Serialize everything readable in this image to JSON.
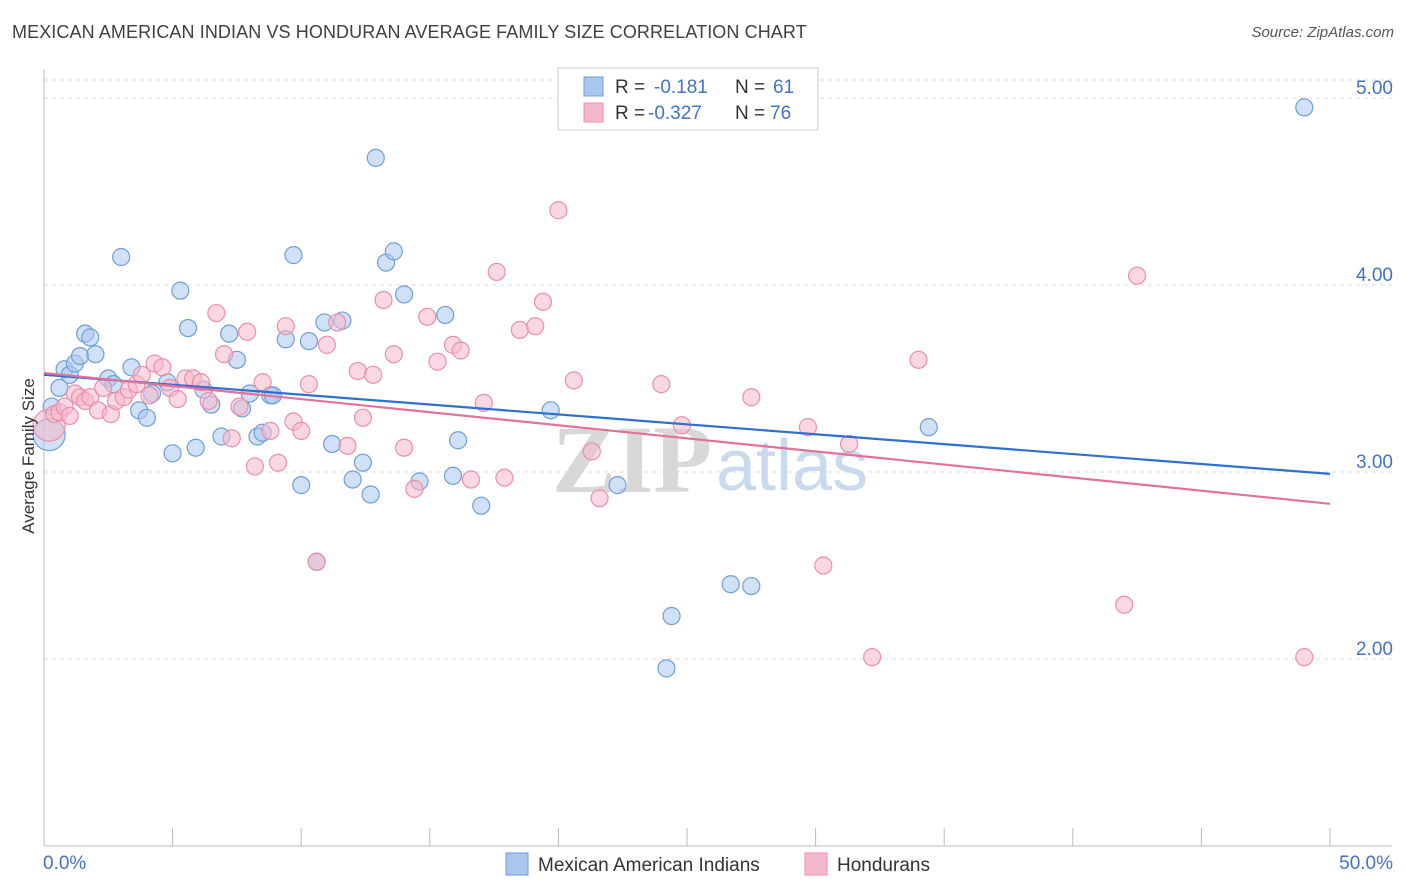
{
  "header": {
    "title": "MEXICAN AMERICAN INDIAN VS HONDURAN AVERAGE FAMILY SIZE CORRELATION CHART",
    "source": "Source: ZipAtlas.com"
  },
  "watermark": {
    "zip": "ZIP",
    "atlas": "atlas"
  },
  "colors": {
    "blue_fill": "#a9c6ee",
    "blue_stroke": "#6f9fd8",
    "blue_line": "#2f6fcf",
    "pink_fill": "#f5b8cb",
    "pink_stroke": "#ea8fac",
    "pink_line": "#e3719a",
    "tick_text": "#4472c4",
    "grid": "#dddddd"
  },
  "legend": {
    "rows": [
      {
        "r_label": "R =",
        "r_value": "-0.181",
        "n_label": "N =",
        "n_value": "61"
      },
      {
        "r_label": "R =",
        "r_value": "-0.327",
        "n_label": "N =",
        "n_value": "76"
      }
    ]
  },
  "chart_data": {
    "type": "scatter",
    "title": "MEXICAN AMERICAN INDIAN VS HONDURAN AVERAGE FAMILY SIZE CORRELATION CHART",
    "xlabel": "",
    "ylabel": "Average Family Size",
    "xlim": [
      0,
      50
    ],
    "ylim": [
      1.0,
      5.15
    ],
    "x_tick_labels": {
      "left": "0.0%",
      "right": "50.0%"
    },
    "y_ticks": [
      2.0,
      3.0,
      4.0,
      5.0
    ],
    "y_tick_labels": [
      "2.00",
      "3.00",
      "4.00",
      "5.00"
    ],
    "series": [
      {
        "name": "Mexican American Indians",
        "color": "blue",
        "r": -0.181,
        "n": 61,
        "trend": {
          "x0": 0,
          "y0": 3.52,
          "x1": 50,
          "y1": 2.99
        },
        "points": [
          [
            0.2,
            3.2
          ],
          [
            0.3,
            3.35
          ],
          [
            0.6,
            3.45
          ],
          [
            0.8,
            3.55
          ],
          [
            1.0,
            3.52
          ],
          [
            1.2,
            3.58
          ],
          [
            1.4,
            3.62
          ],
          [
            1.6,
            3.74
          ],
          [
            1.8,
            3.72
          ],
          [
            2.0,
            3.63
          ],
          [
            2.5,
            3.5
          ],
          [
            2.7,
            3.47
          ],
          [
            3.0,
            4.15
          ],
          [
            3.4,
            3.56
          ],
          [
            3.7,
            3.33
          ],
          [
            4.0,
            3.29
          ],
          [
            4.2,
            3.42
          ],
          [
            4.8,
            3.48
          ],
          [
            5.0,
            3.1
          ],
          [
            5.3,
            3.97
          ],
          [
            5.6,
            3.77
          ],
          [
            5.9,
            3.13
          ],
          [
            6.2,
            3.44
          ],
          [
            6.5,
            3.36
          ],
          [
            6.9,
            3.19
          ],
          [
            7.2,
            3.74
          ],
          [
            7.5,
            3.6
          ],
          [
            7.7,
            3.34
          ],
          [
            8.0,
            3.42
          ],
          [
            8.3,
            3.19
          ],
          [
            8.5,
            3.21
          ],
          [
            8.8,
            3.41
          ],
          [
            9.4,
            3.71
          ],
          [
            9.7,
            4.16
          ],
          [
            10.0,
            2.93
          ],
          [
            10.3,
            3.7
          ],
          [
            10.6,
            2.52
          ],
          [
            10.9,
            3.8
          ],
          [
            11.2,
            3.15
          ],
          [
            11.6,
            3.81
          ],
          [
            12.0,
            2.96
          ],
          [
            12.4,
            3.05
          ],
          [
            12.7,
            2.88
          ],
          [
            12.9,
            4.68
          ],
          [
            13.3,
            4.12
          ],
          [
            13.6,
            4.18
          ],
          [
            14.0,
            3.95
          ],
          [
            14.6,
            2.95
          ],
          [
            15.6,
            3.84
          ],
          [
            15.9,
            2.98
          ],
          [
            16.1,
            3.17
          ],
          [
            17.0,
            2.82
          ],
          [
            19.7,
            3.33
          ],
          [
            22.3,
            2.93
          ],
          [
            24.4,
            2.23
          ],
          [
            24.2,
            1.95
          ],
          [
            26.7,
            2.4
          ],
          [
            27.5,
            2.39
          ],
          [
            34.4,
            3.24
          ],
          [
            49.0,
            4.95
          ],
          [
            8.9,
            3.41
          ]
        ]
      },
      {
        "name": "Hondurans",
        "color": "pink",
        "r": -0.327,
        "n": 76,
        "trend": {
          "x0": 0,
          "y0": 3.53,
          "x1": 50,
          "y1": 2.83
        },
        "points": [
          [
            0.2,
            3.25
          ],
          [
            0.4,
            3.31
          ],
          [
            0.6,
            3.32
          ],
          [
            0.8,
            3.35
          ],
          [
            1.0,
            3.3
          ],
          [
            1.2,
            3.42
          ],
          [
            1.4,
            3.4
          ],
          [
            1.6,
            3.38
          ],
          [
            1.8,
            3.4
          ],
          [
            2.1,
            3.33
          ],
          [
            2.3,
            3.45
          ],
          [
            2.6,
            3.31
          ],
          [
            2.8,
            3.38
          ],
          [
            3.1,
            3.4
          ],
          [
            3.3,
            3.44
          ],
          [
            3.6,
            3.47
          ],
          [
            3.8,
            3.52
          ],
          [
            4.1,
            3.41
          ],
          [
            4.3,
            3.58
          ],
          [
            4.6,
            3.56
          ],
          [
            4.9,
            3.45
          ],
          [
            5.2,
            3.39
          ],
          [
            5.5,
            3.5
          ],
          [
            5.8,
            3.5
          ],
          [
            6.1,
            3.48
          ],
          [
            6.4,
            3.38
          ],
          [
            6.7,
            3.85
          ],
          [
            7.0,
            3.63
          ],
          [
            7.3,
            3.18
          ],
          [
            7.6,
            3.35
          ],
          [
            7.9,
            3.75
          ],
          [
            8.2,
            3.03
          ],
          [
            8.5,
            3.48
          ],
          [
            8.8,
            3.22
          ],
          [
            9.1,
            3.05
          ],
          [
            9.4,
            3.78
          ],
          [
            9.7,
            3.27
          ],
          [
            10.0,
            3.22
          ],
          [
            10.3,
            3.47
          ],
          [
            10.6,
            2.52
          ],
          [
            11.0,
            3.68
          ],
          [
            11.4,
            3.8
          ],
          [
            11.8,
            3.14
          ],
          [
            12.2,
            3.54
          ],
          [
            12.4,
            3.29
          ],
          [
            12.8,
            3.52
          ],
          [
            13.2,
            3.92
          ],
          [
            13.6,
            3.63
          ],
          [
            14.0,
            3.13
          ],
          [
            14.4,
            2.91
          ],
          [
            14.9,
            3.83
          ],
          [
            15.3,
            3.59
          ],
          [
            15.9,
            3.68
          ],
          [
            16.2,
            3.65
          ],
          [
            16.6,
            2.96
          ],
          [
            17.1,
            3.37
          ],
          [
            17.6,
            4.07
          ],
          [
            17.9,
            2.97
          ],
          [
            18.5,
            3.76
          ],
          [
            19.1,
            3.78
          ],
          [
            19.4,
            3.91
          ],
          [
            20.0,
            4.4
          ],
          [
            20.6,
            3.49
          ],
          [
            21.3,
            3.11
          ],
          [
            21.6,
            2.86
          ],
          [
            24.0,
            3.47
          ],
          [
            24.8,
            3.25
          ],
          [
            27.5,
            3.4
          ],
          [
            29.7,
            3.24
          ],
          [
            30.3,
            2.5
          ],
          [
            31.3,
            3.15
          ],
          [
            32.2,
            2.01
          ],
          [
            34.0,
            3.6
          ],
          [
            42.0,
            2.29
          ],
          [
            42.5,
            4.05
          ],
          [
            49.0,
            2.01
          ]
        ]
      }
    ]
  }
}
